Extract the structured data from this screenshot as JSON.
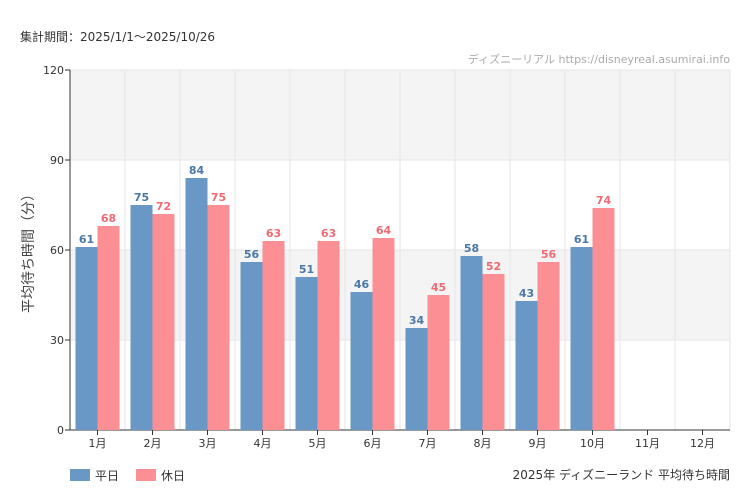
{
  "period_label": "集計期間：2025/1/1～2025/10/26",
  "source_label": "ディズニーリアル https://disneyreal.asumirai.info",
  "footer_caption": "2025年 ディズニーランド 平均待ち時間",
  "chart_data": {
    "type": "bar",
    "ylabel": "平均待ち時間（分）",
    "ylim": [
      0,
      120
    ],
    "yticks": [
      "0",
      "30",
      "60",
      "90",
      "120"
    ],
    "categories": [
      "1月",
      "2月",
      "3月",
      "4月",
      "5月",
      "6月",
      "7月",
      "8月",
      "9月",
      "10月",
      "11月",
      "12月"
    ],
    "series": [
      {
        "name": "平日",
        "color": "#6a98c6",
        "label_color": "#4a78a8",
        "values": [
          61,
          75,
          84,
          56,
          51,
          46,
          34,
          58,
          43,
          61,
          null,
          null
        ]
      },
      {
        "name": "休日",
        "color": "#fc8f94",
        "label_color": "#f06a73",
        "values": [
          68,
          72,
          75,
          63,
          63,
          64,
          45,
          52,
          56,
          74,
          null,
          null
        ]
      }
    ],
    "grid": true,
    "band_colors": [
      "#f4f4f4",
      "#ffffff"
    ],
    "legend_position": "bottom-left"
  }
}
